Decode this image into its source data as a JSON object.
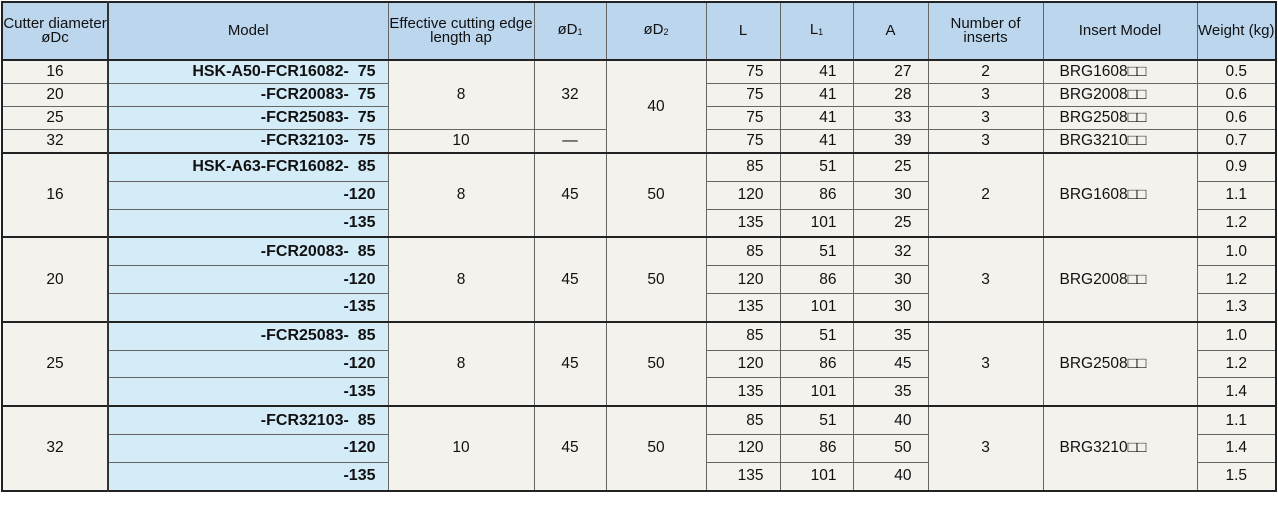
{
  "headers": [
    {
      "main": "Cutter diameter øDc",
      "sub": ""
    },
    {
      "main": "Model",
      "sub": ""
    },
    {
      "main": "Effective cutting edge length ap",
      "sub": ""
    },
    {
      "main": "øD",
      "sub": "1"
    },
    {
      "main": "øD",
      "sub": "2"
    },
    {
      "main": "L",
      "sub": ""
    },
    {
      "main": "L",
      "sub": "1"
    },
    {
      "main": "A",
      "sub": ""
    },
    {
      "main": "Number of inserts",
      "sub": ""
    },
    {
      "main": "Insert Model",
      "sub": ""
    },
    {
      "main": "Weight (kg)",
      "sub": ""
    }
  ],
  "colors": {
    "header": "#bcd6ee",
    "model": "#d4ebf8",
    "body": "#f4f2ec"
  },
  "blocks": [
    {
      "rows": [
        [
          {
            "v": "16"
          },
          {
            "v": "HSK-A50-FCR16082-  75"
          },
          {
            "v": "8",
            "rs": 3
          },
          {
            "v": "32",
            "rs": 3
          },
          {
            "v": "40",
            "rs": 4
          },
          {
            "v": "75"
          },
          {
            "v": "41"
          },
          {
            "v": "27"
          },
          {
            "v": "2"
          },
          {
            "v": "BRG1608□□"
          },
          {
            "v": "0.5"
          }
        ],
        [
          {
            "v": "20"
          },
          {
            "v": "-FCR20083-  75"
          },
          {
            "v": "75"
          },
          {
            "v": "41"
          },
          {
            "v": "28"
          },
          {
            "v": "3"
          },
          {
            "v": "BRG2008□□"
          },
          {
            "v": "0.6"
          }
        ],
        [
          {
            "v": "25"
          },
          {
            "v": "-FCR25083-  75"
          },
          {
            "v": "75"
          },
          {
            "v": "41"
          },
          {
            "v": "33"
          },
          {
            "v": "3"
          },
          {
            "v": "BRG2508□□"
          },
          {
            "v": "0.6"
          }
        ],
        [
          {
            "v": "32"
          },
          {
            "v": "-FCR32103-  75"
          },
          {
            "v": "10"
          },
          {
            "v": "—"
          },
          {
            "v": "75"
          },
          {
            "v": "41"
          },
          {
            "v": "39"
          },
          {
            "v": "3"
          },
          {
            "v": "BRG3210□□"
          },
          {
            "v": "0.7"
          }
        ]
      ]
    },
    {
      "rows": [
        [
          {
            "v": "16",
            "rs": 3
          },
          {
            "v": "HSK-A63-FCR16082-  85"
          },
          {
            "v": "8",
            "rs": 3
          },
          {
            "v": "45",
            "rs": 3
          },
          {
            "v": "50",
            "rs": 3
          },
          {
            "v": "85"
          },
          {
            "v": "51"
          },
          {
            "v": "25"
          },
          {
            "v": "2",
            "rs": 3
          },
          {
            "v": "BRG1608□□",
            "rs": 3
          },
          {
            "v": "0.9"
          }
        ],
        [
          {
            "v": "-120"
          },
          {
            "v": "120"
          },
          {
            "v": "86"
          },
          {
            "v": "30"
          },
          {
            "v": "1.1"
          }
        ],
        [
          {
            "v": "-135"
          },
          {
            "v": "135"
          },
          {
            "v": "101"
          },
          {
            "v": "25"
          },
          {
            "v": "1.2"
          }
        ]
      ]
    },
    {
      "rows": [
        [
          {
            "v": "20",
            "rs": 3
          },
          {
            "v": "-FCR20083-  85"
          },
          {
            "v": "8",
            "rs": 3
          },
          {
            "v": "45",
            "rs": 3
          },
          {
            "v": "50",
            "rs": 3
          },
          {
            "v": "85"
          },
          {
            "v": "51"
          },
          {
            "v": "32"
          },
          {
            "v": "3",
            "rs": 3
          },
          {
            "v": "BRG2008□□",
            "rs": 3
          },
          {
            "v": "1.0"
          }
        ],
        [
          {
            "v": "-120"
          },
          {
            "v": "120"
          },
          {
            "v": "86"
          },
          {
            "v": "30"
          },
          {
            "v": "1.2"
          }
        ],
        [
          {
            "v": "-135"
          },
          {
            "v": "135"
          },
          {
            "v": "101"
          },
          {
            "v": "30"
          },
          {
            "v": "1.3"
          }
        ]
      ]
    },
    {
      "rows": [
        [
          {
            "v": "25",
            "rs": 3
          },
          {
            "v": "-FCR25083-  85"
          },
          {
            "v": "8",
            "rs": 3
          },
          {
            "v": "45",
            "rs": 3
          },
          {
            "v": "50",
            "rs": 3
          },
          {
            "v": "85"
          },
          {
            "v": "51"
          },
          {
            "v": "35"
          },
          {
            "v": "3",
            "rs": 3
          },
          {
            "v": "BRG2508□□",
            "rs": 3
          },
          {
            "v": "1.0"
          }
        ],
        [
          {
            "v": "-120"
          },
          {
            "v": "120"
          },
          {
            "v": "86"
          },
          {
            "v": "45"
          },
          {
            "v": "1.2"
          }
        ],
        [
          {
            "v": "-135"
          },
          {
            "v": "135"
          },
          {
            "v": "101"
          },
          {
            "v": "35"
          },
          {
            "v": "1.4"
          }
        ]
      ]
    },
    {
      "rows": [
        [
          {
            "v": "32",
            "rs": 3
          },
          {
            "v": "-FCR32103-  85"
          },
          {
            "v": "10",
            "rs": 3
          },
          {
            "v": "45",
            "rs": 3
          },
          {
            "v": "50",
            "rs": 3
          },
          {
            "v": "85"
          },
          {
            "v": "51"
          },
          {
            "v": "40"
          },
          {
            "v": "3",
            "rs": 3
          },
          {
            "v": "BRG3210□□",
            "rs": 3
          },
          {
            "v": "1.1"
          }
        ],
        [
          {
            "v": "-120"
          },
          {
            "v": "120"
          },
          {
            "v": "86"
          },
          {
            "v": "50"
          },
          {
            "v": "1.4"
          }
        ],
        [
          {
            "v": "-135"
          },
          {
            "v": "135"
          },
          {
            "v": "101"
          },
          {
            "v": "40"
          },
          {
            "v": "1.5"
          }
        ]
      ]
    }
  ]
}
